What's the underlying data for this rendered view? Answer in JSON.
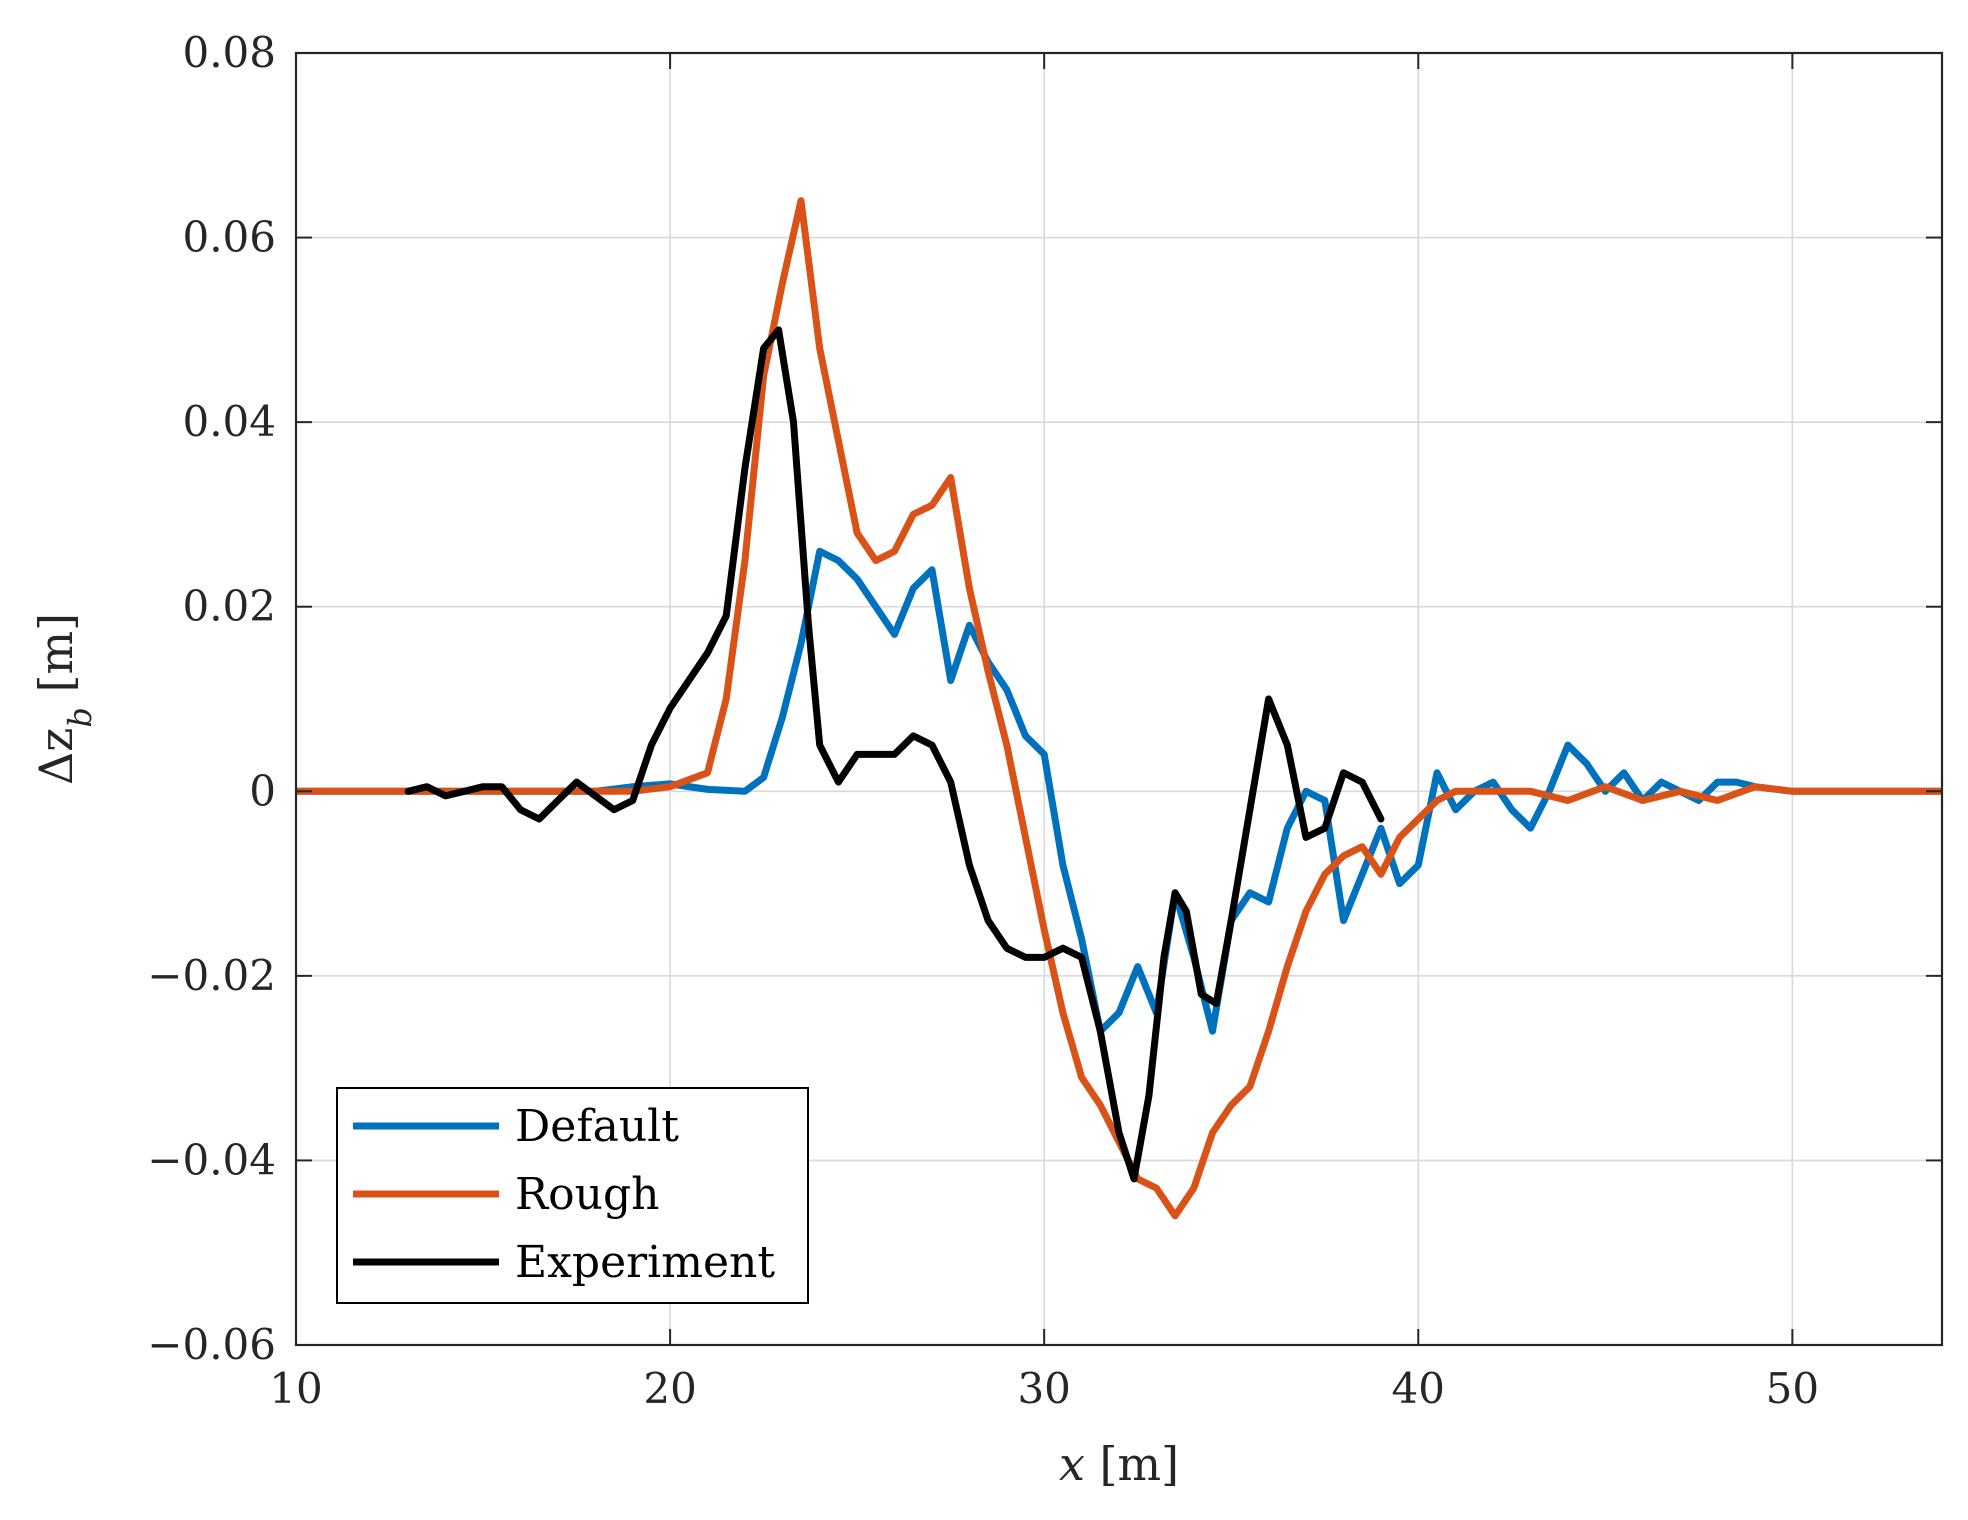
{
  "chart_data": {
    "type": "line",
    "title": "",
    "xlabel": "x [m]",
    "xlabel_var": "x",
    "xlabel_unit": "[m]",
    "ylabel": "Δz_b [m]",
    "ylabel_var": "Δz",
    "ylabel_sub": "b",
    "ylabel_unit": "[m]",
    "xlim": [
      10,
      54
    ],
    "ylim": [
      -0.06,
      0.08
    ],
    "xticks": [
      10,
      20,
      30,
      40,
      50
    ],
    "xtick_labels": [
      "10",
      "20",
      "30",
      "40",
      "50"
    ],
    "yticks": [
      -0.06,
      -0.04,
      -0.02,
      0,
      0.02,
      0.04,
      0.06,
      0.08
    ],
    "ytick_labels": [
      "−0.06",
      "−0.04",
      "−0.02",
      "0",
      "0.02",
      "0.04",
      "0.06",
      "0.08"
    ],
    "grid": true,
    "legend_position": "bottom-left",
    "series": [
      {
        "name": "Default",
        "color": "#0072BD",
        "points": [
          [
            10,
            0
          ],
          [
            12,
            0
          ],
          [
            14,
            0
          ],
          [
            16,
            0
          ],
          [
            18,
            0
          ],
          [
            19,
            0.0005
          ],
          [
            20,
            0.0008
          ],
          [
            21,
            0.0002
          ],
          [
            22,
            0
          ],
          [
            22.5,
            0.0015
          ],
          [
            23,
            0.008
          ],
          [
            23.5,
            0.016
          ],
          [
            24,
            0.026
          ],
          [
            24.5,
            0.025
          ],
          [
            25,
            0.023
          ],
          [
            25.5,
            0.02
          ],
          [
            26,
            0.017
          ],
          [
            26.5,
            0.022
          ],
          [
            27,
            0.024
          ],
          [
            27.5,
            0.012
          ],
          [
            28,
            0.018
          ],
          [
            28.5,
            0.014
          ],
          [
            29,
            0.011
          ],
          [
            29.5,
            0.006
          ],
          [
            30,
            0.004
          ],
          [
            30.5,
            -0.008
          ],
          [
            31,
            -0.016
          ],
          [
            31.5,
            -0.026
          ],
          [
            32,
            -0.024
          ],
          [
            32.5,
            -0.019
          ],
          [
            33,
            -0.024
          ],
          [
            33.5,
            -0.011
          ],
          [
            34,
            -0.018
          ],
          [
            34.5,
            -0.026
          ],
          [
            35,
            -0.014
          ],
          [
            35.5,
            -0.011
          ],
          [
            36,
            -0.012
          ],
          [
            36.5,
            -0.004
          ],
          [
            37,
            0
          ],
          [
            37.5,
            -0.001
          ],
          [
            38,
            -0.014
          ],
          [
            38.5,
            -0.009
          ],
          [
            39,
            -0.004
          ],
          [
            39.5,
            -0.01
          ],
          [
            40,
            -0.008
          ],
          [
            40.5,
            0.002
          ],
          [
            41,
            -0.002
          ],
          [
            41.5,
            0
          ],
          [
            42,
            0.001
          ],
          [
            42.5,
            -0.002
          ],
          [
            43,
            -0.004
          ],
          [
            43.5,
            0
          ],
          [
            44,
            0.005
          ],
          [
            44.5,
            0.003
          ],
          [
            45,
            0
          ],
          [
            45.5,
            0.002
          ],
          [
            46,
            -0.001
          ],
          [
            46.5,
            0.001
          ],
          [
            47,
            0
          ],
          [
            47.5,
            -0.001
          ],
          [
            48,
            0.001
          ],
          [
            48.5,
            0.001
          ],
          [
            49,
            0.0005
          ],
          [
            50,
            0
          ],
          [
            52,
            0
          ],
          [
            54,
            0
          ]
        ]
      },
      {
        "name": "Rough",
        "color": "#D95319",
        "points": [
          [
            10,
            0
          ],
          [
            12,
            0
          ],
          [
            14,
            0
          ],
          [
            16,
            0
          ],
          [
            18,
            0
          ],
          [
            19,
            0
          ],
          [
            20,
            0.0005
          ],
          [
            21,
            0.002
          ],
          [
            21.5,
            0.01
          ],
          [
            22,
            0.025
          ],
          [
            22.5,
            0.045
          ],
          [
            23,
            0.055
          ],
          [
            23.5,
            0.064
          ],
          [
            24,
            0.048
          ],
          [
            24.5,
            0.038
          ],
          [
            25,
            0.028
          ],
          [
            25.5,
            0.025
          ],
          [
            26,
            0.026
          ],
          [
            26.5,
            0.03
          ],
          [
            27,
            0.031
          ],
          [
            27.5,
            0.034
          ],
          [
            28,
            0.022
          ],
          [
            28.5,
            0.013
          ],
          [
            29,
            0.005
          ],
          [
            29.5,
            -0.005
          ],
          [
            30,
            -0.015
          ],
          [
            30.5,
            -0.024
          ],
          [
            31,
            -0.031
          ],
          [
            31.5,
            -0.034
          ],
          [
            32,
            -0.038
          ],
          [
            32.5,
            -0.042
          ],
          [
            33,
            -0.043
          ],
          [
            33.5,
            -0.046
          ],
          [
            34,
            -0.043
          ],
          [
            34.5,
            -0.037
          ],
          [
            35,
            -0.034
          ],
          [
            35.5,
            -0.032
          ],
          [
            36,
            -0.026
          ],
          [
            36.5,
            -0.019
          ],
          [
            37,
            -0.013
          ],
          [
            37.5,
            -0.009
          ],
          [
            38,
            -0.007
          ],
          [
            38.5,
            -0.006
          ],
          [
            39,
            -0.009
          ],
          [
            39.5,
            -0.005
          ],
          [
            40,
            -0.003
          ],
          [
            40.5,
            -0.001
          ],
          [
            41,
            0
          ],
          [
            42,
            0
          ],
          [
            43,
            0
          ],
          [
            44,
            -0.001
          ],
          [
            45,
            0.0005
          ],
          [
            46,
            -0.001
          ],
          [
            47,
            0
          ],
          [
            48,
            -0.001
          ],
          [
            49,
            0.0005
          ],
          [
            50,
            0
          ],
          [
            52,
            0
          ],
          [
            54,
            0
          ]
        ]
      },
      {
        "name": "Experiment",
        "color": "#000000",
        "points": [
          [
            13,
            0
          ],
          [
            13.5,
            0.0005
          ],
          [
            14,
            -0.0005
          ],
          [
            14.5,
            0
          ],
          [
            15,
            0.0005
          ],
          [
            15.5,
            0.0005
          ],
          [
            16,
            -0.002
          ],
          [
            16.5,
            -0.003
          ],
          [
            17,
            -0.001
          ],
          [
            17.5,
            0.001
          ],
          [
            18,
            -0.0005
          ],
          [
            18.5,
            -0.002
          ],
          [
            19,
            -0.001
          ],
          [
            19.5,
            0.005
          ],
          [
            20,
            0.009
          ],
          [
            20.5,
            0.012
          ],
          [
            21,
            0.015
          ],
          [
            21.5,
            0.019
          ],
          [
            22,
            0.035
          ],
          [
            22.5,
            0.048
          ],
          [
            22.9,
            0.05
          ],
          [
            23.3,
            0.04
          ],
          [
            23.7,
            0.018
          ],
          [
            24,
            0.005
          ],
          [
            24.5,
            0.001
          ],
          [
            25,
            0.004
          ],
          [
            25.5,
            0.004
          ],
          [
            26,
            0.004
          ],
          [
            26.5,
            0.006
          ],
          [
            27,
            0.005
          ],
          [
            27.5,
            0.001
          ],
          [
            28,
            -0.008
          ],
          [
            28.5,
            -0.014
          ],
          [
            29,
            -0.017
          ],
          [
            29.5,
            -0.018
          ],
          [
            30,
            -0.018
          ],
          [
            30.5,
            -0.017
          ],
          [
            31,
            -0.018
          ],
          [
            31.5,
            -0.026
          ],
          [
            32,
            -0.037
          ],
          [
            32.4,
            -0.042
          ],
          [
            32.8,
            -0.033
          ],
          [
            33.2,
            -0.018
          ],
          [
            33.5,
            -0.011
          ],
          [
            33.8,
            -0.013
          ],
          [
            34.2,
            -0.022
          ],
          [
            34.6,
            -0.023
          ],
          [
            35,
            -0.014
          ],
          [
            35.5,
            -0.002
          ],
          [
            36,
            0.01
          ],
          [
            36.5,
            0.005
          ],
          [
            37,
            -0.005
          ],
          [
            37.5,
            -0.004
          ],
          [
            38,
            0.002
          ],
          [
            38.5,
            0.001
          ],
          [
            39,
            -0.003
          ]
        ]
      }
    ]
  }
}
